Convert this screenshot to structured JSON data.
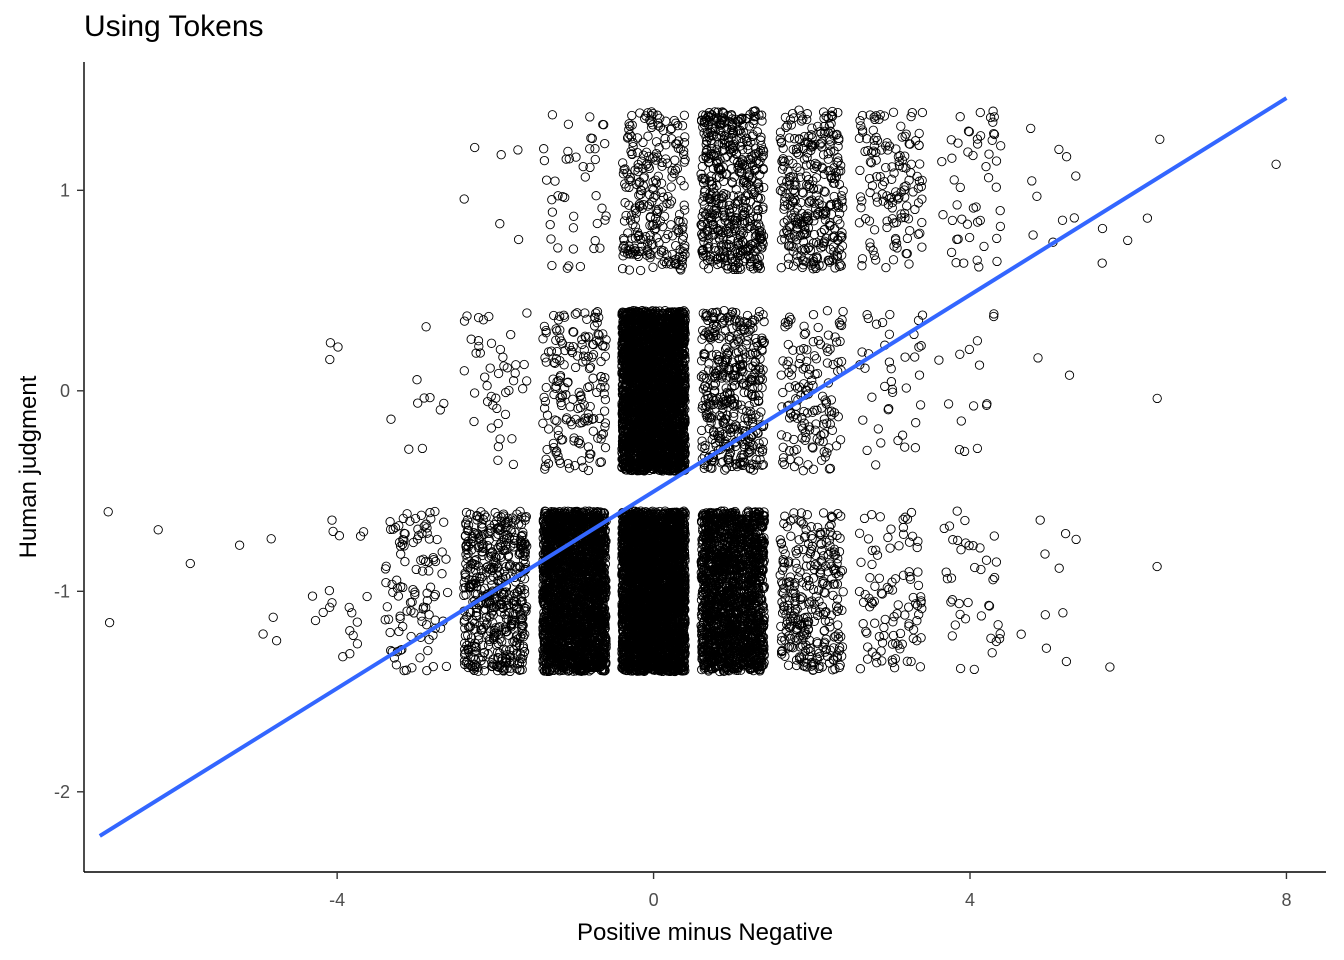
{
  "chart_data": {
    "type": "scatter",
    "title": "Using Tokens",
    "xlabel": "Positive minus Negative",
    "ylabel": "Human judgment",
    "xlim": [
      -7.2,
      8.5
    ],
    "ylim": [
      -2.4,
      1.64
    ],
    "x_ticks": [
      -4,
      0,
      4,
      8
    ],
    "x_tick_labels": [
      "-4",
      "0",
      "4",
      "8"
    ],
    "y_ticks": [
      -2,
      -1,
      0,
      1
    ],
    "y_tick_labels": [
      "-2",
      "-1",
      "0",
      "1"
    ],
    "grid": false,
    "legend": "none",
    "point_style": "open circle",
    "jitter": {
      "x": 0.4,
      "y": 0.4
    },
    "point_color": "#000000",
    "trend_line": {
      "type": "linear",
      "color": "#3366FF",
      "x": [
        -7,
        8
      ],
      "y": [
        -2.22,
        1.46
      ]
    },
    "levels_y": [
      -1,
      0,
      1
    ],
    "levels_x": [
      -7,
      -6,
      -5,
      -4,
      -3,
      -2,
      -1,
      0,
      1,
      2,
      3,
      4,
      5,
      6,
      7,
      8
    ],
    "approx_counts": {
      "y1": [
        0,
        0,
        0,
        0,
        0,
        6,
        45,
        260,
        520,
        330,
        140,
        50,
        10,
        5,
        0,
        1
      ],
      "y0": [
        0,
        0,
        0,
        3,
        10,
        45,
        180,
        3200,
        430,
        150,
        40,
        15,
        2,
        1,
        0,
        0
      ],
      "y-1": [
        2,
        2,
        5,
        20,
        110,
        520,
        2500,
        3500,
        1800,
        300,
        100,
        40,
        10,
        2,
        0,
        0
      ]
    }
  }
}
